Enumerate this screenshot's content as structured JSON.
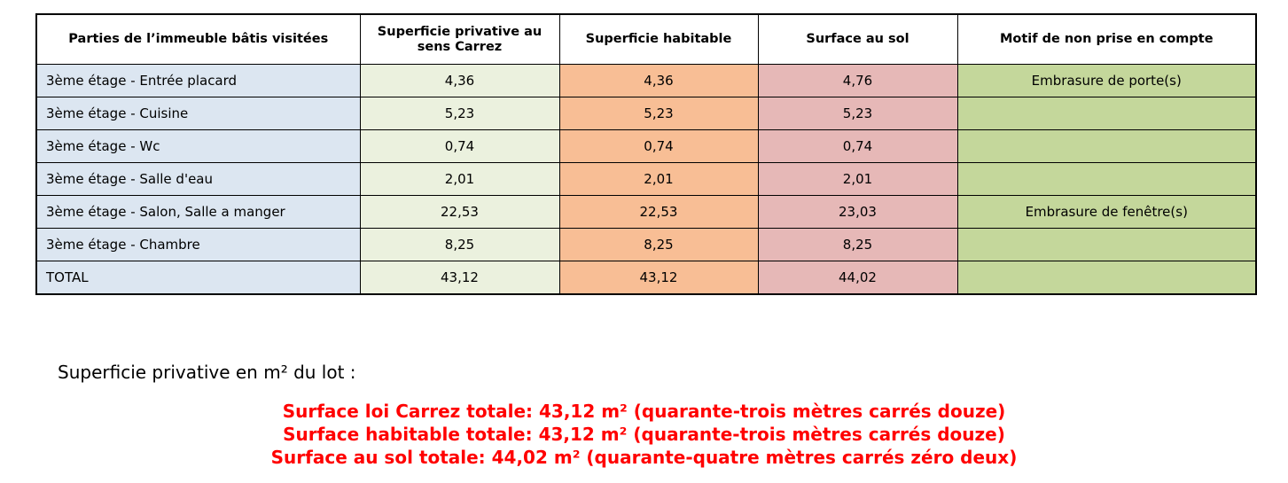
{
  "table": {
    "headers": [
      "Parties de l’immeuble bâtis visitées",
      "Superficie privative au sens Carrez",
      "Superficie habitable",
      "Surface au sol",
      "Motif de non prise en compte"
    ],
    "rows": [
      [
        "3ème étage - Entrée placard",
        "4,36",
        "4,36",
        "4,76",
        "Embrasure de porte(s)"
      ],
      [
        "3ème étage - Cuisine",
        "5,23",
        "5,23",
        "5,23",
        ""
      ],
      [
        "3ème étage - Wc",
        "0,74",
        "0,74",
        "0,74",
        ""
      ],
      [
        "3ème étage - Salle d'eau",
        "2,01",
        "2,01",
        "2,01",
        ""
      ],
      [
        "3ème étage - Salon, Salle a manger",
        "22,53",
        "22,53",
        "23,03",
        "Embrasure de fenêtre(s)"
      ],
      [
        "3ème étage - Chambre",
        "8,25",
        "8,25",
        "8,25",
        ""
      ],
      [
        "TOTAL",
        "43,12",
        "43,12",
        "44,02",
        ""
      ]
    ],
    "column_colors": [
      "#dce6f1",
      "#ebf1de",
      "#f8be95",
      "#e6b8b7",
      "#c4d79b"
    ]
  },
  "summary": {
    "label": "Superficie privative en m² du lot :",
    "color": "#ff0000",
    "lines": [
      "Surface loi Carrez totale: 43,12 m² (quarante-trois mètres carrés douze)",
      "Surface habitable totale: 43,12 m² (quarante-trois mètres carrés douze)",
      "Surface au sol totale: 44,02 m² (quarante-quatre mètres carrés zéro deux)"
    ]
  }
}
